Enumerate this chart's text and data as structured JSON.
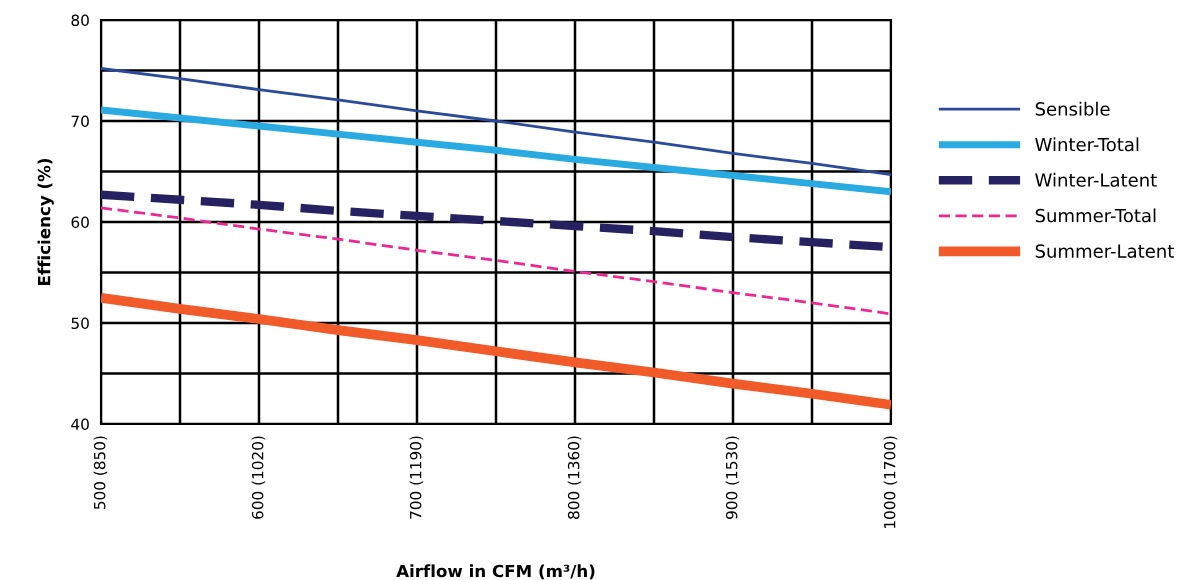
{
  "chart_data": {
    "type": "line",
    "xlabel": "Airflow in CFM (m³/h)",
    "ylabel": "Efficiency (%)",
    "categories": [
      "500 (850)",
      null,
      "600 (1020)",
      null,
      "700 (1190)",
      null,
      "800 (1360)",
      null,
      "900 (1530)",
      null,
      "1000 (1700)"
    ],
    "ylim": [
      40,
      80
    ],
    "yticks": [
      40,
      {
        "value": 45,
        "label": null
      },
      50,
      {
        "value": 55,
        "label": null
      },
      60,
      {
        "value": 65,
        "label": null
      },
      70,
      {
        "value": 75,
        "label": null
      },
      80
    ],
    "grid": true,
    "legend": "right",
    "marker": "none",
    "series": [
      {
        "name": "Sensible",
        "color": "#2a4b9b",
        "values": [
          75.2,
          74.2,
          73.1,
          72.1,
          71.0,
          70.0,
          68.9,
          67.9,
          66.8,
          65.8,
          64.7
        ],
        "line_style": "solid"
      },
      {
        "name": "Winter-Total",
        "color": "#29abe2",
        "values": [
          71.1,
          70.3,
          69.5,
          68.7,
          67.9,
          67.1,
          66.2,
          65.4,
          64.6,
          63.8,
          63.0
        ],
        "line_style": "solid"
      },
      {
        "name": "Winter-Latent",
        "color": "#262262",
        "values": [
          62.7,
          62.2,
          61.7,
          61.1,
          60.6,
          60.1,
          59.6,
          59.1,
          58.5,
          58.0,
          57.5
        ],
        "line_style": "dashed"
      },
      {
        "name": "Summer-Total",
        "color": "#ec2891",
        "values": [
          61.4,
          60.4,
          59.3,
          58.3,
          57.2,
          56.2,
          55.1,
          54.1,
          53.0,
          52.0,
          50.9
        ],
        "line_style": "dashed"
      },
      {
        "name": "Summer-Latent",
        "color": "#f15a29",
        "values": [
          52.5,
          51.4,
          50.4,
          49.3,
          48.3,
          47.2,
          46.1,
          45.1,
          44.0,
          43.0,
          41.9
        ],
        "line_style": "solid"
      }
    ]
  }
}
